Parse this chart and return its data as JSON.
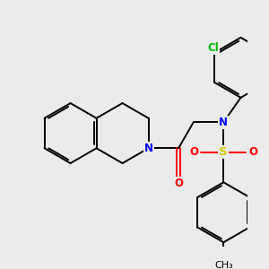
{
  "bg_color": "#ebebeb",
  "bond_color": "#000000",
  "bond_width": 1.4,
  "atom_colors": {
    "N": "#0000ff",
    "O": "#ff0000",
    "S": "#cccc00",
    "Cl": "#00bb00",
    "C": "#000000"
  },
  "font_size": 8.5
}
